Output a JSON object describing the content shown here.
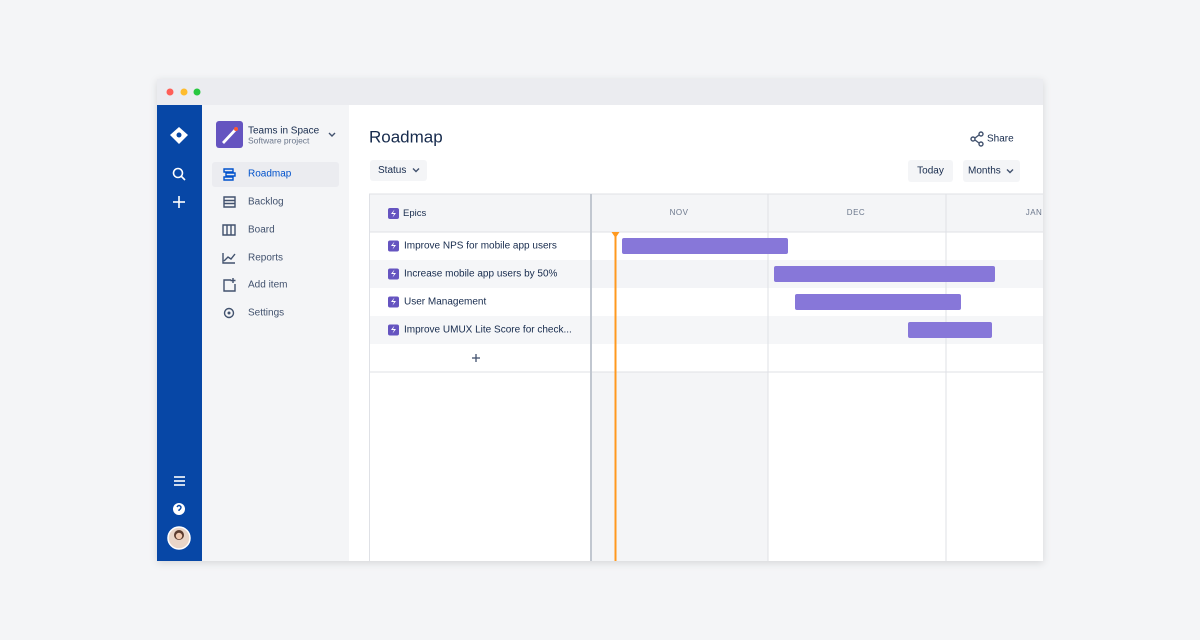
{
  "project": {
    "name": "Teams in Space",
    "subtitle": "Software project"
  },
  "nav": [
    "Roadmap",
    "Backlog",
    "Board",
    "Reports",
    "Add item",
    "Settings"
  ],
  "header": {
    "title": "Roadmap",
    "share": "Share",
    "status": "Status",
    "today": "Today",
    "months_button": "Months"
  },
  "roadmap": {
    "column_title": "Epics",
    "months": [
      "NOV",
      "DEC",
      "JAN"
    ],
    "epics": [
      "Improve NPS for mobile app users",
      "Increase mobile app users by 50%",
      "User Management",
      "Improve UMUX Lite Score for check..."
    ]
  }
}
